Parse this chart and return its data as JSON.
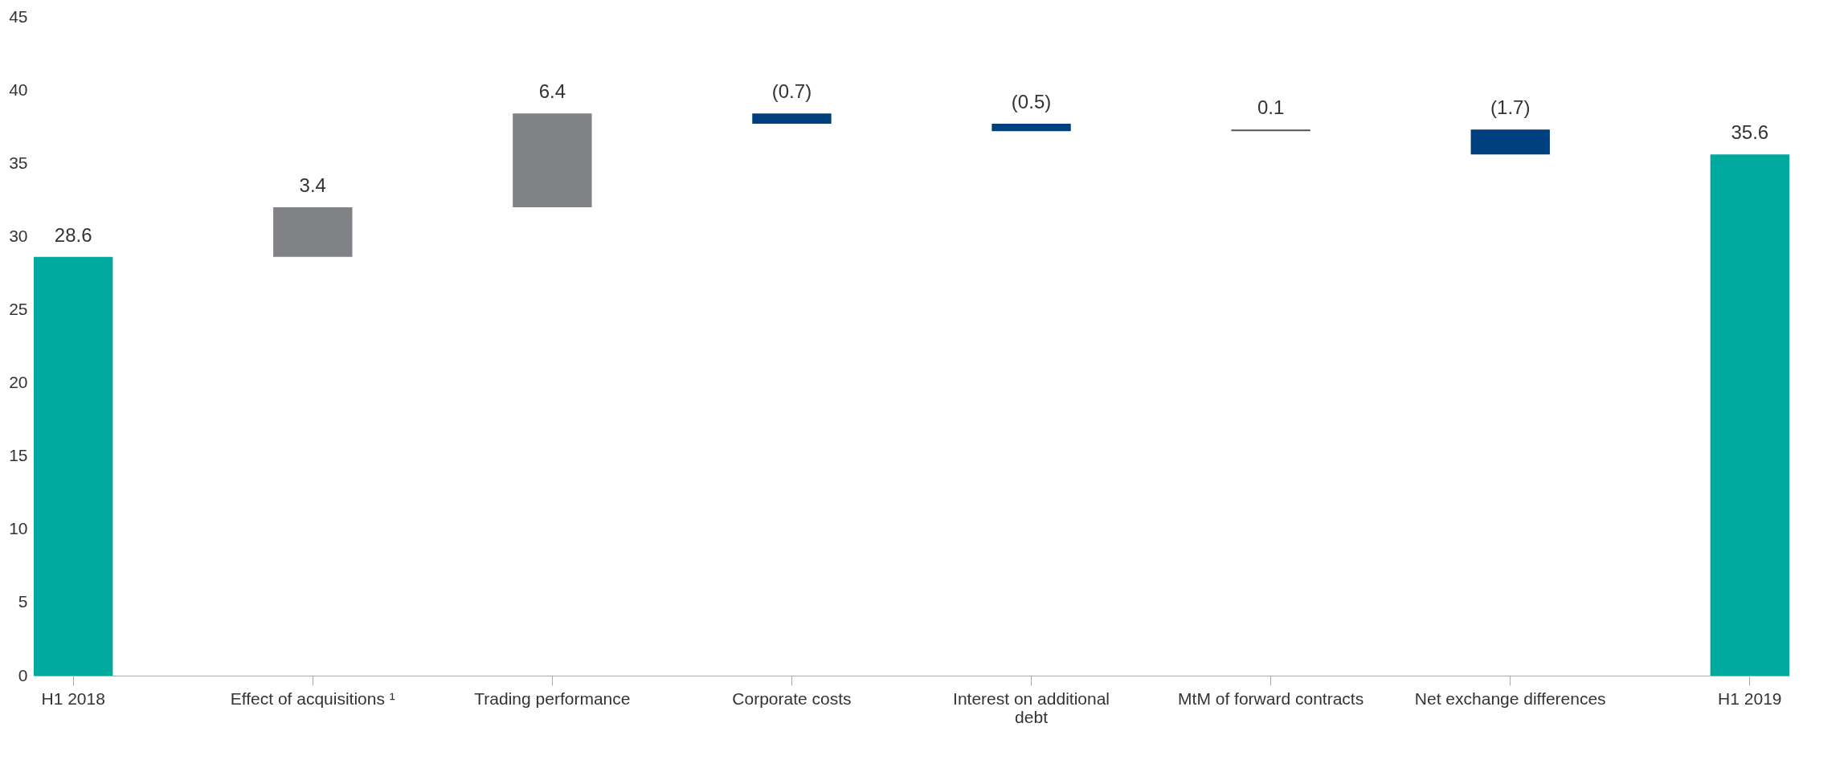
{
  "chart_data": {
    "type": "bar",
    "categories": [
      "H1 2018",
      "Effect of acquisitions ¹",
      "Trading performance",
      "Corporate costs",
      "Interest on additional debt",
      "MtM of forward contracts",
      "Net exchange differences",
      "H1 2019"
    ],
    "values": [
      28.6,
      3.4,
      6.4,
      -0.7,
      -0.5,
      0.1,
      -1.7,
      35.6
    ],
    "base": [
      0,
      28.6,
      32.0,
      38.4,
      37.7,
      37.2,
      37.3,
      0
    ],
    "colors": [
      "#00a99d",
      "#808285",
      "#808285",
      "#003f7d",
      "#003f7d",
      "#555555",
      "#003f7d",
      "#00a99d"
    ],
    "value_labels": [
      "28.6",
      "3.4",
      "6.4",
      "(0.7)",
      "(0.5)",
      "0.1",
      "(1.7)",
      "35.6"
    ],
    "ylim": [
      0,
      45
    ],
    "yticks": [
      0,
      5,
      10,
      15,
      20,
      25,
      30,
      35,
      40,
      45
    ],
    "grid": false
  }
}
